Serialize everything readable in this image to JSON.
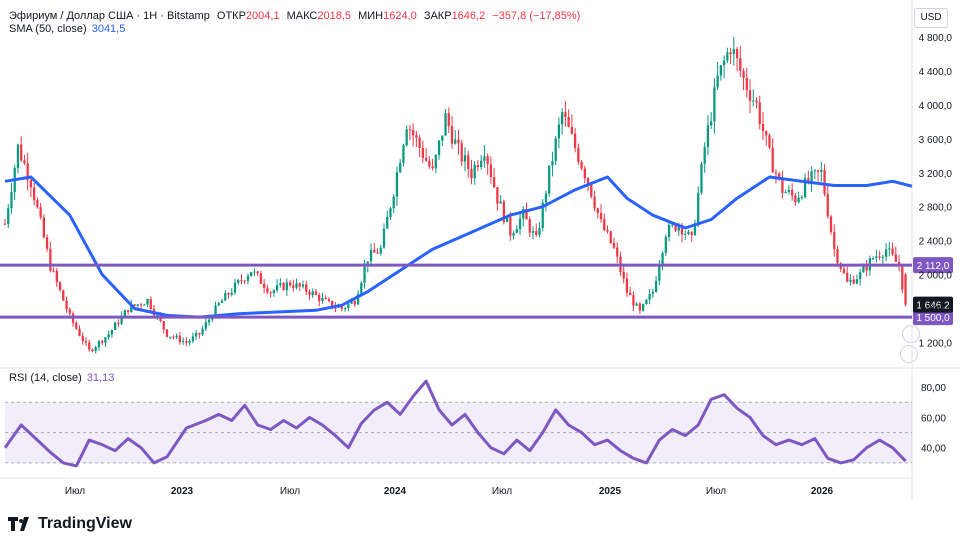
{
  "header": {
    "symbol": "Эфириум / Доллар США · 1Н · Bitstamp",
    "open_label": "ОТКР",
    "open": "2004,1",
    "high_label": "МАКС",
    "high": "2018,5",
    "low_label": "МИН",
    "low": "1624,0",
    "close_label": "ЗАКР",
    "close": "1646,2",
    "change": "−357,8 (−17,85%)"
  },
  "sma_legend": {
    "label": "SMA (50, close)",
    "value": "3041,5"
  },
  "rsi_legend": {
    "label": "RSI (14, close)",
    "value": "31,13"
  },
  "currency": "USD",
  "brand": "TradingView",
  "colors": {
    "up": "#089981",
    "down": "#f23645",
    "sma": "#2962ff",
    "rsi": "#7e57c2",
    "hline": "#7e57c2"
  },
  "chart_data": [
    {
      "type": "candlestick",
      "title": "Эфириум / Доллар США · 1Н · Bitstamp",
      "price_axis_ticks": [
        "4 800,0",
        "4 400,0",
        "4 000,0",
        "3 600,0",
        "3 200,0",
        "2 800,0",
        "2 400,0",
        "2 000,0",
        "1 600,0",
        "1 200,0"
      ],
      "time_axis_ticks": [
        "Июл",
        "2023",
        "Июл",
        "2024",
        "Июл",
        "2025",
        "Июл",
        "2026"
      ],
      "ylim": [
        900,
        5000
      ],
      "horizontal_lines": [
        {
          "value": 2112.0,
          "label": "2 112,0"
        },
        {
          "value": 1500.0,
          "label": "1 500,0"
        }
      ],
      "last_price_label": "1 646,2",
      "price_path": [
        [
          0,
          2600
        ],
        [
          4,
          3500
        ],
        [
          8,
          3100
        ],
        [
          14,
          2100
        ],
        [
          20,
          1500
        ],
        [
          26,
          1100
        ],
        [
          32,
          1300
        ],
        [
          38,
          1600
        ],
        [
          44,
          1700
        ],
        [
          50,
          1300
        ],
        [
          56,
          1200
        ],
        [
          60,
          1300
        ],
        [
          66,
          1650
        ],
        [
          72,
          1900
        ],
        [
          76,
          2050
        ],
        [
          82,
          1800
        ],
        [
          88,
          1900
        ],
        [
          94,
          1800
        ],
        [
          100,
          1650
        ],
        [
          104,
          1600
        ],
        [
          108,
          1700
        ],
        [
          112,
          2200
        ],
        [
          116,
          2300
        ],
        [
          120,
          3000
        ],
        [
          124,
          3800
        ],
        [
          128,
          3500
        ],
        [
          132,
          3200
        ],
        [
          136,
          3850
        ],
        [
          140,
          3450
        ],
        [
          144,
          3200
        ],
        [
          148,
          3500
        ],
        [
          152,
          2900
        ],
        [
          156,
          2500
        ],
        [
          160,
          2700
        ],
        [
          164,
          2400
        ],
        [
          168,
          3200
        ],
        [
          172,
          3900
        ],
        [
          176,
          3500
        ],
        [
          180,
          3100
        ],
        [
          184,
          2600
        ],
        [
          188,
          2300
        ],
        [
          192,
          1800
        ],
        [
          196,
          1550
        ],
        [
          200,
          1800
        ],
        [
          204,
          2500
        ],
        [
          208,
          2600
        ],
        [
          212,
          2400
        ],
        [
          216,
          3500
        ],
        [
          220,
          4300
        ],
        [
          224,
          4700
        ],
        [
          228,
          4300
        ],
        [
          232,
          4000
        ],
        [
          236,
          3400
        ],
        [
          240,
          3000
        ],
        [
          244,
          2900
        ],
        [
          248,
          3100
        ],
        [
          252,
          3200
        ],
        [
          256,
          2300
        ],
        [
          260,
          1900
        ],
        [
          264,
          2000
        ],
        [
          268,
          2200
        ],
        [
          272,
          2300
        ],
        [
          276,
          2100
        ],
        [
          278,
          1646.2
        ]
      ]
    },
    {
      "type": "line",
      "title": "SMA (50, close)",
      "points": [
        [
          0,
          3100
        ],
        [
          8,
          3150
        ],
        [
          20,
          2700
        ],
        [
          30,
          2000
        ],
        [
          40,
          1600
        ],
        [
          50,
          1520
        ],
        [
          60,
          1500
        ],
        [
          72,
          1540
        ],
        [
          84,
          1560
        ],
        [
          96,
          1580
        ],
        [
          104,
          1640
        ],
        [
          112,
          1800
        ],
        [
          120,
          2000
        ],
        [
          132,
          2300
        ],
        [
          144,
          2500
        ],
        [
          156,
          2700
        ],
        [
          166,
          2800
        ],
        [
          176,
          3000
        ],
        [
          186,
          3150
        ],
        [
          192,
          2900
        ],
        [
          200,
          2700
        ],
        [
          210,
          2550
        ],
        [
          218,
          2650
        ],
        [
          226,
          2900
        ],
        [
          236,
          3150
        ],
        [
          246,
          3100
        ],
        [
          256,
          3050
        ],
        [
          266,
          3050
        ],
        [
          274,
          3100
        ],
        [
          280,
          3041.5
        ]
      ]
    },
    {
      "type": "line",
      "title": "RSI (14, close)",
      "y_axis_ticks": [
        "80,00",
        "60,00",
        "40,00"
      ],
      "band": [
        30,
        70
      ],
      "ylim": [
        20,
        90
      ],
      "points": [
        [
          0,
          40
        ],
        [
          5,
          55
        ],
        [
          10,
          45
        ],
        [
          14,
          37
        ],
        [
          18,
          30
        ],
        [
          22,
          28
        ],
        [
          26,
          45
        ],
        [
          30,
          42
        ],
        [
          34,
          38
        ],
        [
          38,
          46
        ],
        [
          42,
          40
        ],
        [
          46,
          30
        ],
        [
          50,
          34
        ],
        [
          56,
          53
        ],
        [
          62,
          58
        ],
        [
          66,
          62
        ],
        [
          70,
          58
        ],
        [
          74,
          68
        ],
        [
          78,
          55
        ],
        [
          82,
          52
        ],
        [
          86,
          58
        ],
        [
          90,
          53
        ],
        [
          94,
          60
        ],
        [
          98,
          55
        ],
        [
          102,
          48
        ],
        [
          106,
          40
        ],
        [
          110,
          56
        ],
        [
          114,
          65
        ],
        [
          118,
          70
        ],
        [
          122,
          62
        ],
        [
          126,
          74
        ],
        [
          130,
          84
        ],
        [
          134,
          65
        ],
        [
          138,
          55
        ],
        [
          142,
          62
        ],
        [
          146,
          50
        ],
        [
          150,
          40
        ],
        [
          154,
          36
        ],
        [
          158,
          45
        ],
        [
          162,
          38
        ],
        [
          166,
          50
        ],
        [
          170,
          65
        ],
        [
          174,
          55
        ],
        [
          178,
          50
        ],
        [
          182,
          42
        ],
        [
          186,
          45
        ],
        [
          190,
          38
        ],
        [
          194,
          33
        ],
        [
          198,
          30
        ],
        [
          202,
          45
        ],
        [
          206,
          52
        ],
        [
          210,
          48
        ],
        [
          214,
          55
        ],
        [
          218,
          72
        ],
        [
          222,
          75
        ],
        [
          226,
          66
        ],
        [
          230,
          60
        ],
        [
          234,
          48
        ],
        [
          238,
          42
        ],
        [
          242,
          45
        ],
        [
          246,
          42
        ],
        [
          250,
          46
        ],
        [
          254,
          33
        ],
        [
          258,
          30
        ],
        [
          262,
          32
        ],
        [
          266,
          40
        ],
        [
          270,
          45
        ],
        [
          274,
          40
        ],
        [
          278,
          31.13
        ]
      ]
    }
  ]
}
